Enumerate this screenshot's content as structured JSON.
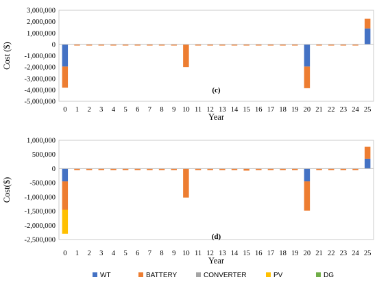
{
  "colors": {
    "WT": "#4472C4",
    "BATTERY": "#ED7D31",
    "CONVERTER": "#A5A5A5",
    "PV": "#FFC000",
    "DG": "#70AD47",
    "axis": "#BFBFBF"
  },
  "legend": {
    "entries": [
      {
        "key": "WT",
        "label": "WT"
      },
      {
        "key": "BATTERY",
        "label": "BATTERY"
      },
      {
        "key": "CONVERTER",
        "label": "CONVERTER"
      },
      {
        "key": "PV",
        "label": "PV"
      },
      {
        "key": "DG",
        "label": "DG"
      }
    ]
  },
  "chart_data": [
    {
      "type": "bar",
      "stacked": true,
      "panel_label": "(c)",
      "ylabel": "Cost ($)",
      "xlabel": "Year",
      "ylim": [
        -5000000,
        3000000
      ],
      "yticks": [
        3000000,
        2000000,
        1000000,
        0,
        -1000000,
        -2000000,
        -3000000,
        -4000000,
        -5000000
      ],
      "ytick_labels": [
        "3,000,000",
        "2,000,000",
        "1,000,000",
        "0",
        "-1,000,000",
        "-2,000,000",
        "-3,000,000",
        "-4,000,000",
        "-5,000,000"
      ],
      "categories": [
        "0",
        "1",
        "2",
        "3",
        "4",
        "5",
        "6",
        "7",
        "8",
        "9",
        "10",
        "11",
        "12",
        "13",
        "14",
        "15",
        "16",
        "17",
        "18",
        "19",
        "20",
        "21",
        "22",
        "23",
        "24",
        "25"
      ],
      "series": [
        {
          "name": "WT",
          "values": [
            -1950000,
            0,
            0,
            0,
            0,
            0,
            0,
            0,
            0,
            0,
            0,
            0,
            0,
            0,
            0,
            0,
            0,
            0,
            0,
            0,
            -1950000,
            0,
            0,
            0,
            0,
            1400000
          ]
        },
        {
          "name": "BATTERY",
          "values": [
            -1850000,
            -100000,
            -100000,
            -100000,
            -100000,
            -100000,
            -100000,
            -100000,
            -100000,
            -100000,
            -2000000,
            -100000,
            -100000,
            -100000,
            -100000,
            -100000,
            -100000,
            -100000,
            -100000,
            -100000,
            -1900000,
            -100000,
            -100000,
            -100000,
            -100000,
            850000
          ]
        },
        {
          "name": "CONVERTER",
          "values": [
            0,
            0,
            0,
            0,
            0,
            0,
            0,
            0,
            0,
            0,
            0,
            0,
            0,
            0,
            0,
            0,
            0,
            0,
            0,
            0,
            0,
            0,
            0,
            0,
            0,
            0
          ]
        },
        {
          "name": "PV",
          "values": [
            0,
            0,
            0,
            0,
            0,
            0,
            0,
            0,
            0,
            0,
            0,
            0,
            0,
            0,
            0,
            0,
            0,
            0,
            0,
            0,
            0,
            0,
            0,
            0,
            0,
            0
          ]
        },
        {
          "name": "DG",
          "values": [
            0,
            0,
            0,
            0,
            0,
            0,
            0,
            0,
            0,
            0,
            0,
            0,
            0,
            0,
            0,
            0,
            0,
            0,
            0,
            0,
            0,
            0,
            0,
            0,
            0,
            0
          ]
        }
      ]
    },
    {
      "type": "bar",
      "stacked": true,
      "panel_label": "(d)",
      "ylabel": "Cost($)",
      "xlabel": "Year",
      "ylim": [
        -2500000,
        1000000
      ],
      "yticks": [
        1000000,
        500000,
        0,
        -500000,
        -1000000,
        -1500000,
        -2000000,
        -2500000
      ],
      "ytick_labels": [
        "1,000,000",
        "500,000",
        "0",
        "-500,000",
        "-1,000,000",
        "-1,500,000",
        "-2,000,000",
        "-2,500,000"
      ],
      "categories": [
        "0",
        "1",
        "2",
        "3",
        "4",
        "5",
        "6",
        "7",
        "8",
        "9",
        "10",
        "11",
        "12",
        "13",
        "14",
        "15",
        "16",
        "17",
        "18",
        "19",
        "20",
        "21",
        "22",
        "23",
        "24",
        "25"
      ],
      "series": [
        {
          "name": "WT",
          "values": [
            -450000,
            0,
            0,
            0,
            0,
            0,
            0,
            0,
            0,
            0,
            0,
            0,
            0,
            0,
            0,
            0,
            0,
            0,
            0,
            0,
            -450000,
            0,
            0,
            0,
            0,
            350000
          ]
        },
        {
          "name": "BATTERY",
          "values": [
            -1000000,
            -50000,
            -50000,
            -50000,
            -50000,
            -50000,
            -50000,
            -50000,
            -50000,
            -50000,
            -1020000,
            -50000,
            -50000,
            -50000,
            -50000,
            -70000,
            -50000,
            -50000,
            -50000,
            -50000,
            -1030000,
            -50000,
            -50000,
            -50000,
            -50000,
            420000
          ]
        },
        {
          "name": "CONVERTER",
          "values": [
            0,
            0,
            0,
            0,
            0,
            0,
            0,
            0,
            0,
            0,
            0,
            0,
            0,
            0,
            0,
            0,
            0,
            0,
            0,
            0,
            0,
            0,
            0,
            0,
            0,
            0
          ]
        },
        {
          "name": "PV",
          "values": [
            -850000,
            0,
            0,
            0,
            0,
            0,
            0,
            0,
            0,
            0,
            0,
            0,
            0,
            0,
            0,
            0,
            0,
            0,
            0,
            0,
            0,
            0,
            0,
            0,
            0,
            0
          ]
        },
        {
          "name": "DG",
          "values": [
            0,
            0,
            0,
            0,
            0,
            0,
            0,
            0,
            0,
            0,
            0,
            0,
            0,
            0,
            0,
            0,
            0,
            0,
            0,
            0,
            0,
            0,
            0,
            0,
            0,
            0
          ]
        }
      ]
    }
  ]
}
